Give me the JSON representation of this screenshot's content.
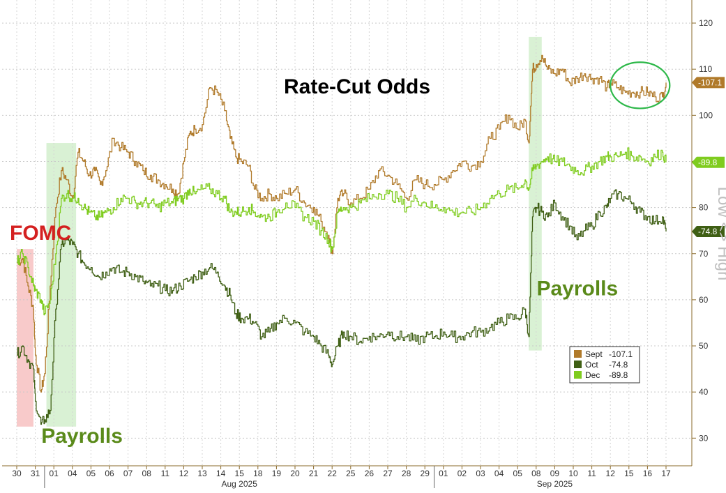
{
  "chart_data": {
    "type": "line",
    "title": "Rate-Cut Odds",
    "axis_side_label": "Low <> High",
    "ylim": [
      24,
      125
    ],
    "y_ticks": [
      30,
      40,
      50,
      60,
      70,
      80,
      90,
      100,
      110,
      120
    ],
    "grid": true,
    "x_categories": [
      "30",
      "31",
      "01",
      "04",
      "05",
      "06",
      "07",
      "08",
      "11",
      "12",
      "13",
      "14",
      "15",
      "18",
      "19",
      "20",
      "21",
      "22",
      "25",
      "26",
      "27",
      "28",
      "29",
      "01",
      "02",
      "03",
      "04",
      "05",
      "08",
      "09",
      "10",
      "11",
      "12",
      "15",
      "16",
      "17"
    ],
    "month_labels": [
      {
        "label": "Aug 2025",
        "from": 2,
        "to": 22
      },
      {
        "label": "Sep 2025",
        "from": 23,
        "to": 35
      }
    ],
    "month_dividers": [
      1.5,
      22.5
    ],
    "highlights": [
      {
        "x0": 0.0,
        "x1": 0.9,
        "y0": 32.5,
        "y1": 71,
        "color": "#f4a6a6"
      },
      {
        "x0": 1.6,
        "x1": 3.2,
        "y0": 32.5,
        "y1": 94,
        "color": "#bfe8b8"
      },
      {
        "x0": 27.6,
        "x1": 28.3,
        "y0": 49,
        "y1": 117,
        "color": "#bfe8b8"
      }
    ],
    "annotations": [
      {
        "text": "FOMC",
        "color": "#d42020",
        "x": 0.0,
        "y": 73
      },
      {
        "text": "Payrolls",
        "color": "#5a8a1a",
        "x": 1.7,
        "y": 29
      },
      {
        "text": "Payrolls",
        "color": "#5a8a1a",
        "x": 28.4,
        "y": 61
      }
    ],
    "callout_ellipse": {
      "cx": 33.6,
      "cy": 106.5,
      "rx": 1.6,
      "ry": 5,
      "color": "#2eb84a"
    },
    "series": [
      {
        "name": "Sept",
        "color": "#b07a2a",
        "last": "-107.1",
        "last_value": 107.1,
        "points": [
          [
            0,
            68
          ],
          [
            0.3,
            69
          ],
          [
            0.6,
            63
          ],
          [
            0.9,
            58
          ],
          [
            1.0,
            48
          ],
          [
            1.3,
            40
          ],
          [
            1.5,
            44
          ],
          [
            1.8,
            63
          ],
          [
            2.1,
            80
          ],
          [
            2.4,
            88
          ],
          [
            2.7,
            86
          ],
          [
            3.0,
            82
          ],
          [
            3.3,
            92
          ],
          [
            3.6,
            90
          ],
          [
            3.9,
            87
          ],
          [
            4.2,
            88
          ],
          [
            4.5,
            85
          ],
          [
            4.8,
            88
          ],
          [
            5.2,
            95
          ],
          [
            5.6,
            93
          ],
          [
            6.0,
            92
          ],
          [
            6.4,
            90
          ],
          [
            6.8,
            88
          ],
          [
            7.2,
            87
          ],
          [
            7.6,
            86
          ],
          [
            8.0,
            85
          ],
          [
            8.4,
            84
          ],
          [
            8.7,
            83
          ],
          [
            9.0,
            90
          ],
          [
            9.3,
            96
          ],
          [
            9.6,
            97
          ],
          [
            10.0,
            98
          ],
          [
            10.4,
            106
          ],
          [
            10.8,
            105
          ],
          [
            11.2,
            101
          ],
          [
            11.5,
            95
          ],
          [
            11.8,
            91
          ],
          [
            12.1,
            90
          ],
          [
            12.5,
            89
          ],
          [
            12.8,
            84
          ],
          [
            13.2,
            82
          ],
          [
            13.6,
            83
          ],
          [
            14.0,
            82
          ],
          [
            14.5,
            83
          ],
          [
            15.0,
            84
          ],
          [
            15.5,
            81
          ],
          [
            16.0,
            80
          ],
          [
            16.4,
            77
          ],
          [
            16.8,
            74
          ],
          [
            17.0,
            70
          ],
          [
            17.3,
            82
          ],
          [
            17.6,
            83
          ],
          [
            18.0,
            81
          ],
          [
            18.5,
            82
          ],
          [
            19.0,
            84
          ],
          [
            19.5,
            88
          ],
          [
            20.0,
            87
          ],
          [
            20.5,
            85
          ],
          [
            21.0,
            82
          ],
          [
            21.5,
            86
          ],
          [
            22.0,
            85
          ],
          [
            22.5,
            85
          ],
          [
            23.0,
            86
          ],
          [
            23.5,
            88
          ],
          [
            24.0,
            90
          ],
          [
            24.5,
            89
          ],
          [
            25.0,
            90
          ],
          [
            25.5,
            95
          ],
          [
            26.0,
            97
          ],
          [
            26.5,
            100
          ],
          [
            27.0,
            97
          ],
          [
            27.4,
            99
          ],
          [
            27.6,
            94
          ],
          [
            27.8,
            110
          ],
          [
            28.0,
            111
          ],
          [
            28.3,
            113
          ],
          [
            28.6,
            110
          ],
          [
            29.0,
            109
          ],
          [
            29.4,
            110
          ],
          [
            29.8,
            107
          ],
          [
            30.2,
            108
          ],
          [
            30.6,
            109
          ],
          [
            31.0,
            108
          ],
          [
            31.4,
            108
          ],
          [
            31.8,
            106
          ],
          [
            32.0,
            107
          ],
          [
            32.4,
            106
          ],
          [
            32.8,
            105
          ],
          [
            33.2,
            105
          ],
          [
            33.6,
            105
          ],
          [
            34.0,
            105
          ],
          [
            34.4,
            104
          ],
          [
            34.8,
            104
          ],
          [
            35.0,
            107.1
          ]
        ]
      },
      {
        "name": "Oct",
        "color": "#3f5f14",
        "last": "-74.8",
        "last_value": 74.8,
        "points": [
          [
            0,
            48
          ],
          [
            0.3,
            50
          ],
          [
            0.6,
            47
          ],
          [
            0.9,
            45
          ],
          [
            1.0,
            38
          ],
          [
            1.3,
            33
          ],
          [
            1.5,
            34
          ],
          [
            1.8,
            36
          ],
          [
            2.1,
            58
          ],
          [
            2.4,
            72
          ],
          [
            2.7,
            73
          ],
          [
            3.0,
            72
          ],
          [
            3.3,
            70
          ],
          [
            3.6,
            68
          ],
          [
            4.0,
            67
          ],
          [
            4.4,
            65
          ],
          [
            4.8,
            66
          ],
          [
            5.2,
            67
          ],
          [
            5.6,
            66
          ],
          [
            6.0,
            66
          ],
          [
            6.4,
            65
          ],
          [
            6.8,
            64
          ],
          [
            7.2,
            63
          ],
          [
            7.6,
            63
          ],
          [
            8.0,
            62
          ],
          [
            8.4,
            62
          ],
          [
            8.8,
            63
          ],
          [
            9.2,
            64
          ],
          [
            9.6,
            65
          ],
          [
            10.0,
            66
          ],
          [
            10.4,
            67
          ],
          [
            10.8,
            66
          ],
          [
            11.2,
            63
          ],
          [
            11.5,
            61
          ],
          [
            11.8,
            57
          ],
          [
            12.1,
            56
          ],
          [
            12.5,
            56
          ],
          [
            12.8,
            55
          ],
          [
            13.2,
            52
          ],
          [
            13.6,
            53
          ],
          [
            14.0,
            55
          ],
          [
            14.5,
            56
          ],
          [
            15.0,
            55
          ],
          [
            15.5,
            53
          ],
          [
            16.0,
            52
          ],
          [
            16.4,
            50
          ],
          [
            16.8,
            48
          ],
          [
            17.0,
            46
          ],
          [
            17.3,
            50
          ],
          [
            17.6,
            53
          ],
          [
            18.0,
            52
          ],
          [
            18.5,
            51
          ],
          [
            19.0,
            52
          ],
          [
            19.5,
            52
          ],
          [
            20.0,
            53
          ],
          [
            20.5,
            52
          ],
          [
            21.0,
            52
          ],
          [
            21.5,
            51
          ],
          [
            22.0,
            52
          ],
          [
            22.5,
            52
          ],
          [
            23.0,
            53
          ],
          [
            23.5,
            52
          ],
          [
            24.0,
            52
          ],
          [
            24.5,
            53
          ],
          [
            25.0,
            53
          ],
          [
            25.5,
            54
          ],
          [
            26.0,
            55
          ],
          [
            26.5,
            56
          ],
          [
            27.0,
            56
          ],
          [
            27.4,
            58
          ],
          [
            27.6,
            52
          ],
          [
            27.8,
            78
          ],
          [
            28.0,
            80
          ],
          [
            28.3,
            79
          ],
          [
            28.6,
            78
          ],
          [
            29.0,
            81
          ],
          [
            29.4,
            78
          ],
          [
            29.8,
            76
          ],
          [
            30.2,
            73
          ],
          [
            30.6,
            75
          ],
          [
            31.0,
            76
          ],
          [
            31.4,
            79
          ],
          [
            31.8,
            80
          ],
          [
            32.0,
            82
          ],
          [
            32.4,
            83
          ],
          [
            32.8,
            82
          ],
          [
            33.2,
            81
          ],
          [
            33.6,
            79
          ],
          [
            34.0,
            78
          ],
          [
            34.4,
            77
          ],
          [
            34.8,
            78
          ],
          [
            35.0,
            74.8
          ]
        ]
      },
      {
        "name": "Dec",
        "color": "#7fcc1f",
        "last": "-89.8",
        "last_value": 89.8,
        "points": [
          [
            0,
            68
          ],
          [
            0.3,
            70
          ],
          [
            0.6,
            67
          ],
          [
            0.9,
            63
          ],
          [
            1.0,
            62
          ],
          [
            1.3,
            60
          ],
          [
            1.5,
            57
          ],
          [
            1.8,
            60
          ],
          [
            2.1,
            70
          ],
          [
            2.4,
            82
          ],
          [
            2.7,
            83
          ],
          [
            3.0,
            82
          ],
          [
            3.3,
            82
          ],
          [
            3.6,
            80
          ],
          [
            3.9,
            79
          ],
          [
            4.2,
            78
          ],
          [
            4.5,
            78
          ],
          [
            4.8,
            79
          ],
          [
            5.2,
            80
          ],
          [
            5.6,
            82
          ],
          [
            6.0,
            82
          ],
          [
            6.4,
            81
          ],
          [
            6.8,
            81
          ],
          [
            7.2,
            81
          ],
          [
            7.6,
            80
          ],
          [
            8.0,
            81
          ],
          [
            8.4,
            81
          ],
          [
            8.7,
            82
          ],
          [
            9.0,
            82
          ],
          [
            9.3,
            84
          ],
          [
            9.6,
            83
          ],
          [
            10.0,
            84
          ],
          [
            10.4,
            84
          ],
          [
            10.8,
            83
          ],
          [
            11.2,
            82
          ],
          [
            11.5,
            79
          ],
          [
            11.8,
            79
          ],
          [
            12.1,
            79
          ],
          [
            12.5,
            80
          ],
          [
            12.8,
            79
          ],
          [
            13.2,
            78
          ],
          [
            13.6,
            78
          ],
          [
            14.0,
            79
          ],
          [
            14.5,
            81
          ],
          [
            15.0,
            80
          ],
          [
            15.5,
            78
          ],
          [
            16.0,
            77
          ],
          [
            16.4,
            75
          ],
          [
            16.8,
            73
          ],
          [
            17.0,
            71
          ],
          [
            17.3,
            79
          ],
          [
            17.6,
            80
          ],
          [
            18.0,
            80
          ],
          [
            18.5,
            81
          ],
          [
            19.0,
            82
          ],
          [
            19.5,
            83
          ],
          [
            20.0,
            83
          ],
          [
            20.5,
            82
          ],
          [
            21.0,
            80
          ],
          [
            21.5,
            82
          ],
          [
            22.0,
            81
          ],
          [
            22.5,
            80
          ],
          [
            23.0,
            80
          ],
          [
            23.5,
            79
          ],
          [
            24.0,
            79
          ],
          [
            24.5,
            79
          ],
          [
            25.0,
            80
          ],
          [
            25.5,
            82
          ],
          [
            26.0,
            83
          ],
          [
            26.5,
            84
          ],
          [
            27.0,
            84
          ],
          [
            27.4,
            86
          ],
          [
            27.6,
            84
          ],
          [
            27.8,
            88
          ],
          [
            28.0,
            89
          ],
          [
            28.3,
            90
          ],
          [
            28.6,
            91
          ],
          [
            29.0,
            90
          ],
          [
            29.4,
            90
          ],
          [
            29.8,
            89
          ],
          [
            30.2,
            88
          ],
          [
            30.6,
            88
          ],
          [
            31.0,
            89
          ],
          [
            31.4,
            90
          ],
          [
            31.8,
            91
          ],
          [
            32.0,
            91
          ],
          [
            32.4,
            91
          ],
          [
            32.8,
            92
          ],
          [
            33.2,
            91
          ],
          [
            33.6,
            91
          ],
          [
            34.0,
            90
          ],
          [
            34.4,
            91
          ],
          [
            34.8,
            92
          ],
          [
            35.0,
            89.8
          ]
        ]
      }
    ]
  }
}
